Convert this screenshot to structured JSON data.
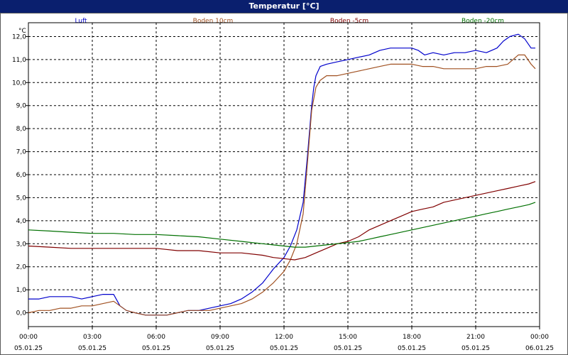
{
  "window": {
    "title": "Temperatur [°C]"
  },
  "colors": {
    "luft": "#0000cc",
    "boden10": "#a05020",
    "boden5": "#800000",
    "boden20": "#007000",
    "grid": "#000000",
    "title_bg": "#0a1f6e"
  },
  "chart_data": {
    "type": "line",
    "title": "Temperatur [°C]",
    "ylabel": "°C",
    "xlabel": "",
    "ylim": [
      -0.6,
      12.6
    ],
    "xlim": [
      0,
      24
    ],
    "grid": true,
    "legend_position": "top",
    "y_ticks": [
      "0,0",
      "1,0",
      "2,0",
      "3,0",
      "4,0",
      "5,0",
      "6,0",
      "7,0",
      "8,0",
      "9,0",
      "10,0",
      "11,0",
      "12,0"
    ],
    "x_ticks": [
      {
        "time": "00:00",
        "date": "05.01.25"
      },
      {
        "time": "03:00",
        "date": "05.01.25"
      },
      {
        "time": "06:00",
        "date": "05.01.25"
      },
      {
        "time": "09:00",
        "date": "05.01.25"
      },
      {
        "time": "12:00",
        "date": "05.01.25"
      },
      {
        "time": "15:00",
        "date": "05.01.25"
      },
      {
        "time": "18:00",
        "date": "05.01.25"
      },
      {
        "time": "21:00",
        "date": "05.01.25"
      },
      {
        "time": "00:00",
        "date": "06.01.25"
      }
    ],
    "series": [
      {
        "name": "Luft",
        "color": "#0000cc",
        "x": [
          0,
          0.5,
          1,
          1.5,
          2,
          2.5,
          3,
          3.5,
          4,
          4.3,
          4.6,
          5,
          5.5,
          6,
          6.5,
          7,
          7.5,
          8,
          8.5,
          9,
          9.5,
          10,
          10.5,
          11,
          11.5,
          12,
          12.3,
          12.6,
          12.9,
          13.1,
          13.3,
          13.4,
          13.5,
          13.7,
          14,
          14.5,
          15,
          15.5,
          16,
          16.5,
          17,
          17.5,
          18,
          18.3,
          18.6,
          19,
          19.5,
          20,
          20.5,
          21,
          21.5,
          22,
          22.3,
          22.6,
          23,
          23.3,
          23.6,
          23.8
        ],
        "y": [
          0.6,
          0.6,
          0.7,
          0.7,
          0.7,
          0.6,
          0.7,
          0.8,
          0.8,
          0.3,
          0.1,
          0.0,
          -0.1,
          -0.1,
          -0.1,
          0.0,
          0.1,
          0.1,
          0.2,
          0.3,
          0.4,
          0.6,
          0.9,
          1.3,
          1.9,
          2.4,
          2.9,
          3.6,
          4.8,
          6.8,
          9.0,
          9.8,
          10.3,
          10.7,
          10.8,
          10.9,
          11.0,
          11.1,
          11.2,
          11.4,
          11.5,
          11.5,
          11.5,
          11.4,
          11.2,
          11.3,
          11.2,
          11.3,
          11.3,
          11.4,
          11.3,
          11.5,
          11.8,
          12.0,
          12.1,
          11.9,
          11.5,
          11.5
        ]
      },
      {
        "name": "Boden 10cm",
        "color": "#a05020",
        "x": [
          0,
          0.5,
          1,
          1.5,
          2,
          2.5,
          3,
          3.5,
          4,
          4.3,
          4.6,
          5,
          5.5,
          6,
          6.5,
          7,
          7.5,
          8,
          8.5,
          9,
          9.5,
          10,
          10.5,
          11,
          11.5,
          12,
          12.3,
          12.6,
          12.9,
          13.1,
          13.3,
          13.5,
          13.7,
          14,
          14.5,
          15,
          15.5,
          16,
          16.5,
          17,
          17.5,
          18,
          18.5,
          19,
          19.5,
          20,
          20.5,
          21,
          21.5,
          22,
          22.5,
          23,
          23.3,
          23.6,
          23.8
        ],
        "y": [
          0.0,
          0.1,
          0.1,
          0.2,
          0.2,
          0.3,
          0.3,
          0.4,
          0.5,
          0.3,
          0.1,
          0.0,
          -0.1,
          -0.1,
          -0.1,
          0.0,
          0.1,
          0.1,
          0.1,
          0.2,
          0.3,
          0.4,
          0.6,
          0.9,
          1.3,
          1.8,
          2.3,
          3.0,
          4.3,
          6.5,
          8.8,
          9.8,
          10.1,
          10.3,
          10.3,
          10.4,
          10.5,
          10.6,
          10.7,
          10.8,
          10.8,
          10.8,
          10.7,
          10.7,
          10.6,
          10.6,
          10.6,
          10.6,
          10.7,
          10.7,
          10.8,
          11.2,
          11.2,
          10.8,
          10.6
        ]
      },
      {
        "name": "Boden -5cm",
        "color": "#800000",
        "x": [
          0,
          1,
          2,
          3,
          4,
          5,
          6,
          7,
          8,
          9,
          10,
          11,
          11.5,
          12,
          12.5,
          13,
          13.5,
          14,
          14.5,
          15,
          15.5,
          16,
          16.5,
          17,
          17.5,
          18,
          18.5,
          19,
          19.5,
          20,
          20.5,
          21,
          21.5,
          22,
          22.5,
          23,
          23.5,
          23.8
        ],
        "y": [
          2.9,
          2.85,
          2.8,
          2.8,
          2.8,
          2.8,
          2.8,
          2.7,
          2.7,
          2.6,
          2.6,
          2.5,
          2.4,
          2.35,
          2.3,
          2.4,
          2.6,
          2.8,
          3.0,
          3.1,
          3.3,
          3.6,
          3.8,
          4.0,
          4.2,
          4.4,
          4.5,
          4.6,
          4.8,
          4.9,
          5.0,
          5.1,
          5.2,
          5.3,
          5.4,
          5.5,
          5.6,
          5.7
        ]
      },
      {
        "name": "Boden -20cm",
        "color": "#007000",
        "x": [
          0,
          1,
          2,
          3,
          4,
          5,
          6,
          7,
          8,
          9,
          10,
          11,
          12,
          12.5,
          13,
          13.5,
          14,
          14.5,
          15,
          15.5,
          16,
          16.5,
          17,
          17.5,
          18,
          18.5,
          19,
          19.5,
          20,
          20.5,
          21,
          21.5,
          22,
          22.5,
          23,
          23.5,
          23.8
        ],
        "y": [
          3.6,
          3.55,
          3.5,
          3.45,
          3.45,
          3.4,
          3.4,
          3.35,
          3.3,
          3.2,
          3.1,
          3.0,
          2.9,
          2.85,
          2.85,
          2.9,
          2.95,
          3.0,
          3.05,
          3.1,
          3.2,
          3.3,
          3.4,
          3.5,
          3.6,
          3.7,
          3.8,
          3.9,
          4.0,
          4.1,
          4.2,
          4.3,
          4.4,
          4.5,
          4.6,
          4.7,
          4.8
        ]
      }
    ]
  }
}
